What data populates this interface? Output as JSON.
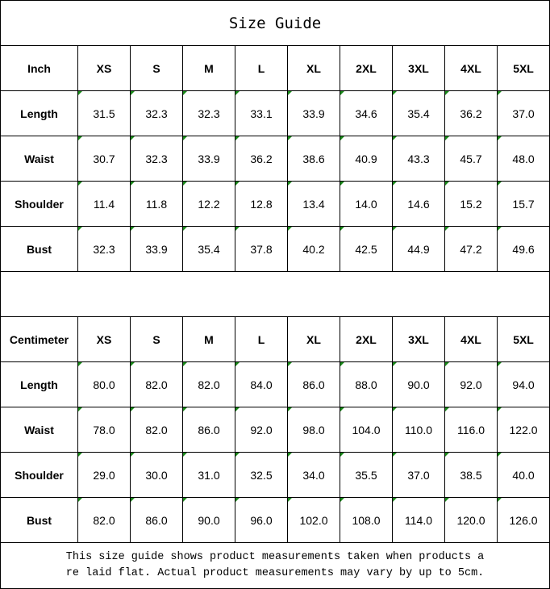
{
  "title": "Size Guide",
  "sizes": [
    "XS",
    "S",
    "M",
    "L",
    "XL",
    "2XL",
    "3XL",
    "4XL",
    "5XL"
  ],
  "inch": {
    "unit_label": "Inch",
    "rows": [
      {
        "label": "Length",
        "values": [
          "31.5",
          "32.3",
          "32.3",
          "33.1",
          "33.9",
          "34.6",
          "35.4",
          "36.2",
          "37.0"
        ]
      },
      {
        "label": "Waist",
        "values": [
          "30.7",
          "32.3",
          "33.9",
          "36.2",
          "38.6",
          "40.9",
          "43.3",
          "45.7",
          "48.0"
        ]
      },
      {
        "label": "Shoulder",
        "values": [
          "11.4",
          "11.8",
          "12.2",
          "12.8",
          "13.4",
          "14.0",
          "14.6",
          "15.2",
          "15.7"
        ]
      },
      {
        "label": "Bust",
        "values": [
          "32.3",
          "33.9",
          "35.4",
          "37.8",
          "40.2",
          "42.5",
          "44.9",
          "47.2",
          "49.6"
        ]
      }
    ]
  },
  "centimeter": {
    "unit_label": "Centimeter",
    "rows": [
      {
        "label": "Length",
        "values": [
          "80.0",
          "82.0",
          "82.0",
          "84.0",
          "86.0",
          "88.0",
          "90.0",
          "92.0",
          "94.0"
        ]
      },
      {
        "label": "Waist",
        "values": [
          "78.0",
          "82.0",
          "86.0",
          "92.0",
          "98.0",
          "104.0",
          "110.0",
          "116.0",
          "122.0"
        ]
      },
      {
        "label": "Shoulder",
        "values": [
          "29.0",
          "30.0",
          "31.0",
          "32.5",
          "34.0",
          "35.5",
          "37.0",
          "38.5",
          "40.0"
        ]
      },
      {
        "label": "Bust",
        "values": [
          "82.0",
          "86.0",
          "90.0",
          "96.0",
          "102.0",
          "108.0",
          "114.0",
          "120.0",
          "126.0"
        ]
      }
    ]
  },
  "footer": {
    "line1": "This size guide shows product measurements taken when products a",
    "line2": "re laid flat. Actual product measurements may vary by up to 5cm."
  },
  "colors": {
    "error_indicator": "#1a8a1a"
  }
}
